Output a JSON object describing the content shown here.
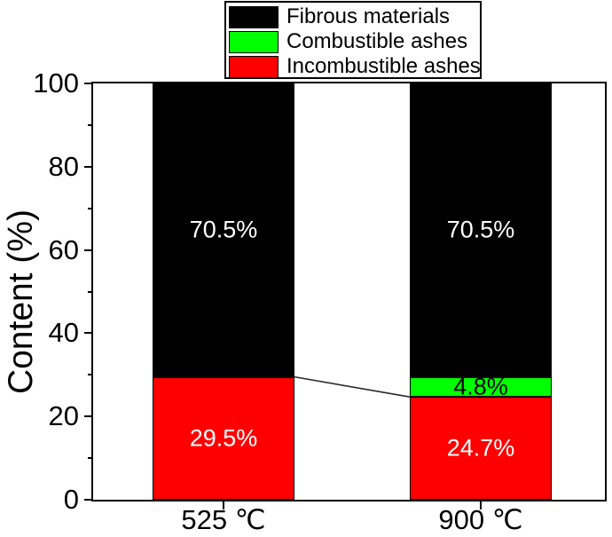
{
  "figure": {
    "background": "#ffffff",
    "axis_color": "#000000"
  },
  "chart_data": {
    "type": "bar",
    "stacked": true,
    "title": "",
    "xlabel": "",
    "ylabel": "Content (%)",
    "ylim": [
      0,
      100
    ],
    "yticks_major": [
      0,
      20,
      40,
      60,
      80,
      100
    ],
    "yticks_minor": [
      10,
      30,
      50,
      70,
      90
    ],
    "grid": false,
    "categories": [
      "525 ℃",
      "900 ℃"
    ],
    "series": [
      {
        "name": "Incombustible ashes",
        "color": "#ff0000",
        "values": [
          29.5,
          24.7
        ],
        "data_labels": [
          "29.5%",
          "24.7%"
        ],
        "label_color": "#ffffff"
      },
      {
        "name": "Combustible ashes",
        "color": "#00ff00",
        "values": [
          0,
          4.8
        ],
        "data_labels": [
          "",
          "4.8%"
        ],
        "label_color": "#000000"
      },
      {
        "name": "Fibrous materials",
        "color": "#000000",
        "values": [
          70.5,
          70.5
        ],
        "data_labels": [
          "70.5%",
          "70.5%"
        ],
        "label_color": "#ffffff"
      }
    ],
    "legend": {
      "position": "top-center",
      "entries": [
        {
          "label": "Fibrous materials",
          "color": "#000000"
        },
        {
          "label": "Combustible ashes",
          "color": "#00ff00"
        },
        {
          "label": "Incombustible ashes",
          "color": "#ff0000"
        }
      ]
    },
    "connector_line": {
      "from_category": 0,
      "from_value": 29.5,
      "to_category": 1,
      "to_value": 24.7,
      "color": "#2a2a2a"
    }
  }
}
